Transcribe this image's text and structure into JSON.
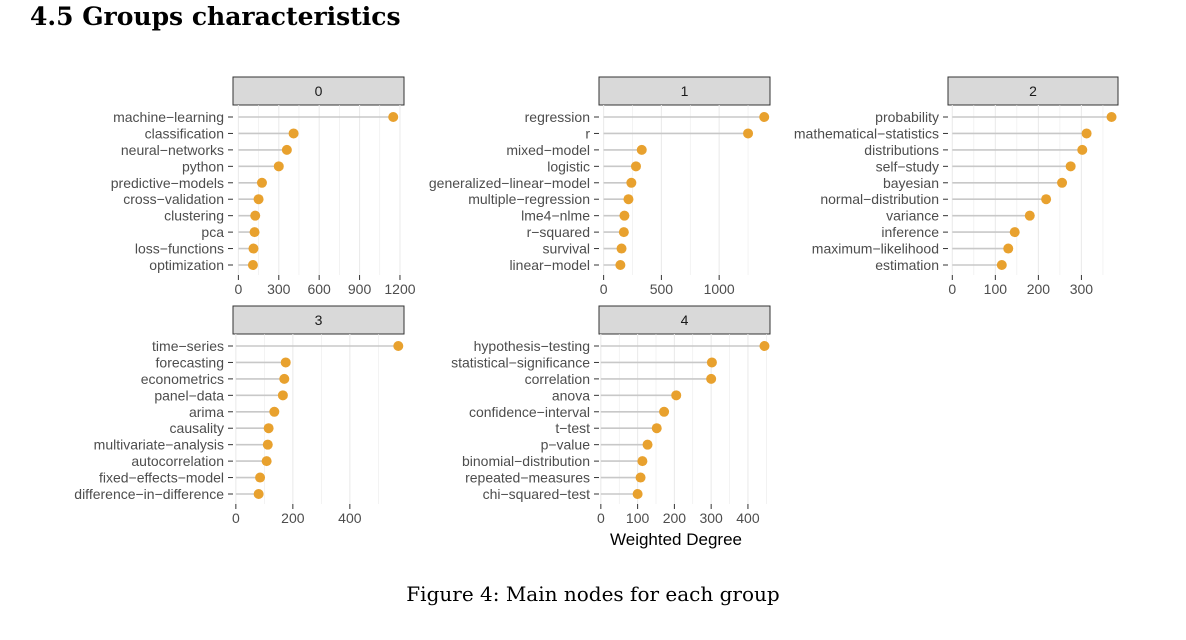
{
  "section": {
    "title": "4.5 Groups characteristics"
  },
  "caption": "Figure 4: Main nodes for each group",
  "chart_data": {
    "type": "lollipop",
    "xlabel": "Weighted Degree",
    "colors": {
      "point": "#E8A12E",
      "stem": "#c8c8c8",
      "grid": "#ebebeb",
      "strip": "#d9d9d9"
    },
    "panels": [
      {
        "group": "0",
        "xlim": [
          -40,
          1230
        ],
        "ticks": [
          0,
          300,
          600,
          900,
          1200
        ],
        "ticklabels": [
          "0",
          "300",
          "600",
          "900",
          "1200"
        ],
        "items": [
          {
            "label": "machine−learning",
            "value": 1150
          },
          {
            "label": "classification",
            "value": 410
          },
          {
            "label": "neural−networks",
            "value": 360
          },
          {
            "label": "python",
            "value": 300
          },
          {
            "label": "predictive−models",
            "value": 175
          },
          {
            "label": "cross−validation",
            "value": 150
          },
          {
            "label": "clustering",
            "value": 125
          },
          {
            "label": "pca",
            "value": 120
          },
          {
            "label": "loss−functions",
            "value": 112
          },
          {
            "label": "optimization",
            "value": 108
          }
        ]
      },
      {
        "group": "1",
        "xlim": [
          -40,
          1440
        ],
        "ticks": [
          0,
          500,
          1000
        ],
        "ticklabels": [
          "0",
          "500",
          "1000"
        ],
        "items": [
          {
            "label": "regression",
            "value": 1390
          },
          {
            "label": "r",
            "value": 1250
          },
          {
            "label": "mixed−model",
            "value": 330
          },
          {
            "label": "logistic",
            "value": 280
          },
          {
            "label": "generalized−linear−model",
            "value": 240
          },
          {
            "label": "multiple−regression",
            "value": 215
          },
          {
            "label": "lme4−nlme",
            "value": 180
          },
          {
            "label": "r−squared",
            "value": 175
          },
          {
            "label": "survival",
            "value": 155
          },
          {
            "label": "linear−model",
            "value": 145
          }
        ]
      },
      {
        "group": "2",
        "xlim": [
          -10,
          385
        ],
        "ticks": [
          0,
          100,
          200,
          300
        ],
        "ticklabels": [
          "0",
          "100",
          "200",
          "300"
        ],
        "items": [
          {
            "label": "probability",
            "value": 370
          },
          {
            "label": "mathematical−statistics",
            "value": 312
          },
          {
            "label": "distributions",
            "value": 302
          },
          {
            "label": "self−study",
            "value": 275
          },
          {
            "label": "bayesian",
            "value": 255
          },
          {
            "label": "normal−distribution",
            "value": 218
          },
          {
            "label": "variance",
            "value": 180
          },
          {
            "label": "inference",
            "value": 145
          },
          {
            "label": "maximum−likelihood",
            "value": 130
          },
          {
            "label": "estimation",
            "value": 115
          }
        ]
      },
      {
        "group": "3",
        "xlim": [
          -10,
          590
        ],
        "ticks": [
          0,
          200,
          400
        ],
        "ticklabels": [
          "0",
          "200",
          "400"
        ],
        "items": [
          {
            "label": "time−series",
            "value": 570
          },
          {
            "label": "forecasting",
            "value": 175
          },
          {
            "label": "econometrics",
            "value": 170
          },
          {
            "label": "panel−data",
            "value": 165
          },
          {
            "label": "arima",
            "value": 135
          },
          {
            "label": "causality",
            "value": 115
          },
          {
            "label": "multivariate−analysis",
            "value": 112
          },
          {
            "label": "autocorrelation",
            "value": 108
          },
          {
            "label": "fixed−effects−model",
            "value": 85
          },
          {
            "label": "difference−in−difference",
            "value": 80
          }
        ]
      },
      {
        "group": "4",
        "xlim": [
          -5,
          460
        ],
        "ticks": [
          0,
          100,
          200,
          300,
          400
        ],
        "ticklabels": [
          "0",
          "100",
          "200",
          "300",
          "400"
        ],
        "items": [
          {
            "label": "hypothesis−testing",
            "value": 445
          },
          {
            "label": "statistical−significance",
            "value": 302
          },
          {
            "label": "correlation",
            "value": 300
          },
          {
            "label": "anova",
            "value": 205
          },
          {
            "label": "confidence−interval",
            "value": 172
          },
          {
            "label": "t−test",
            "value": 152
          },
          {
            "label": "p−value",
            "value": 127
          },
          {
            "label": "binomial−distribution",
            "value": 113
          },
          {
            "label": "repeated−measures",
            "value": 108
          },
          {
            "label": "chi−squared−test",
            "value": 100
          }
        ]
      }
    ]
  }
}
